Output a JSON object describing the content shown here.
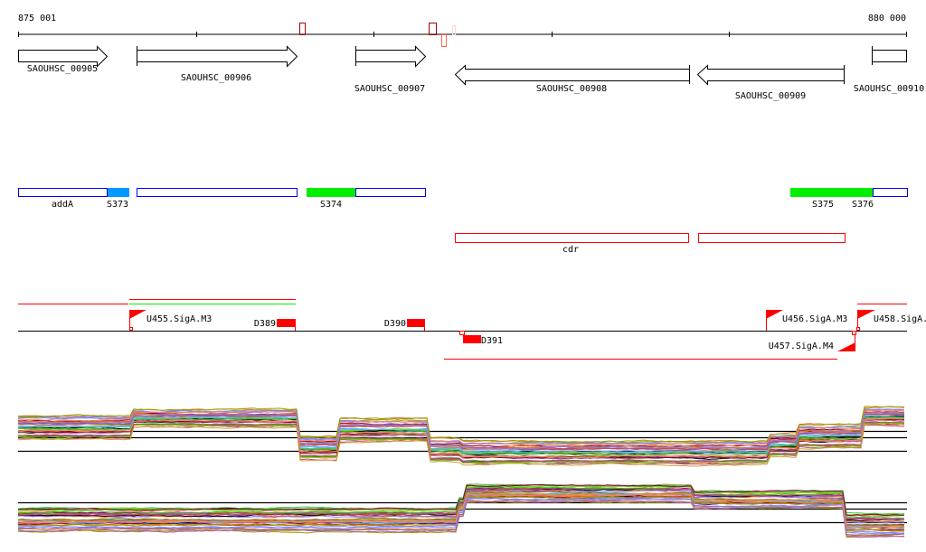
{
  "ruler": {
    "start_label": "875 001",
    "end_label": "880 000",
    "start": 875001,
    "end": 880000
  },
  "genes": [
    {
      "name": "SAOUHSC_00905",
      "strand": "+"
    },
    {
      "name": "SAOUHSC_00906",
      "strand": "+"
    },
    {
      "name": "SAOUHSC_00907",
      "strand": "+"
    },
    {
      "name": "SAOUHSC_00908",
      "strand": "-"
    },
    {
      "name": "SAOUHSC_00909",
      "strand": "-"
    },
    {
      "name": "SAOUHSC_00910",
      "strand": "+"
    }
  ],
  "annotations": {
    "addA": "addA",
    "S373": "S373",
    "S374": "S374",
    "S375": "S375",
    "S376": "S376",
    "cdr": "cdr"
  },
  "signals": {
    "U455": "U455.SigA.M3",
    "U456": "U456.SigA.M3",
    "U457": "U457.SigA.M4",
    "U458": "U458.SigA.",
    "D389": "D389",
    "D390": "D390",
    "D391": "D391"
  },
  "colors": {
    "gene_outline": "#000000",
    "feature_outline": "#0000ff",
    "feature_blue": "#0099ff",
    "feature_green": "#00ee00",
    "red": "#ff0000",
    "dark_red": "#aa0000"
  }
}
